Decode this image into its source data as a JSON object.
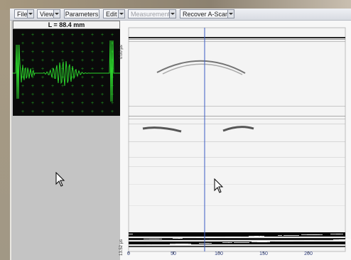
{
  "toolbar": {
    "file": "File",
    "view": "View",
    "parameters": "Parameters",
    "edit": "Edit",
    "measurements": "Measurements",
    "recover_ascan": "Recover A-Scan"
  },
  "ascan": {
    "length_label": "L = 88.4 mm",
    "trace_color": "#2bd12b",
    "background_color": "#0a0a0a"
  },
  "bscan": {
    "depth_start_label": "0.00 µs",
    "depth_end_label": "13.52 µs",
    "x_ticks": [
      "0",
      "50",
      "100",
      "150",
      "200"
    ],
    "cursor_line_color": "#3a5cc4"
  },
  "icons": {
    "pointer": "mouse-pointer-icon"
  }
}
